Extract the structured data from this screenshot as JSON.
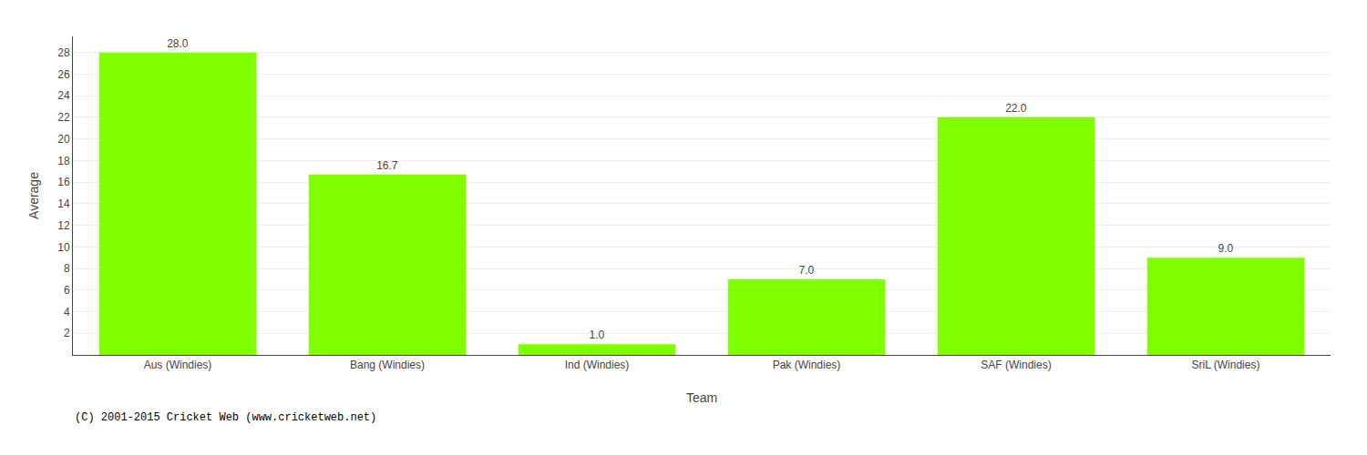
{
  "chart_data": {
    "type": "bar",
    "xlabel": "Team",
    "ylabel": "Average",
    "categories": [
      "Aus (Windies)",
      "Bang (Windies)",
      "Ind (Windies)",
      "Pak (Windies)",
      "SAF (Windies)",
      "SriL (Windies)"
    ],
    "values": [
      28.0,
      16.7,
      1.0,
      7.0,
      22.0,
      9.0
    ],
    "value_labels": [
      "28.0",
      "16.7",
      "1.0",
      "7.0",
      "22.0",
      "9.0"
    ],
    "data_labels": true,
    "color": "#7fff00",
    "ylim": [
      0,
      29.5
    ],
    "yticks": [
      2,
      4,
      6,
      8,
      10,
      12,
      14,
      16,
      18,
      20,
      22,
      24,
      26,
      28
    ],
    "grid": true,
    "annotations": [
      "(C) 2001-2015 Cricket Web (www.cricketweb.net)"
    ]
  }
}
